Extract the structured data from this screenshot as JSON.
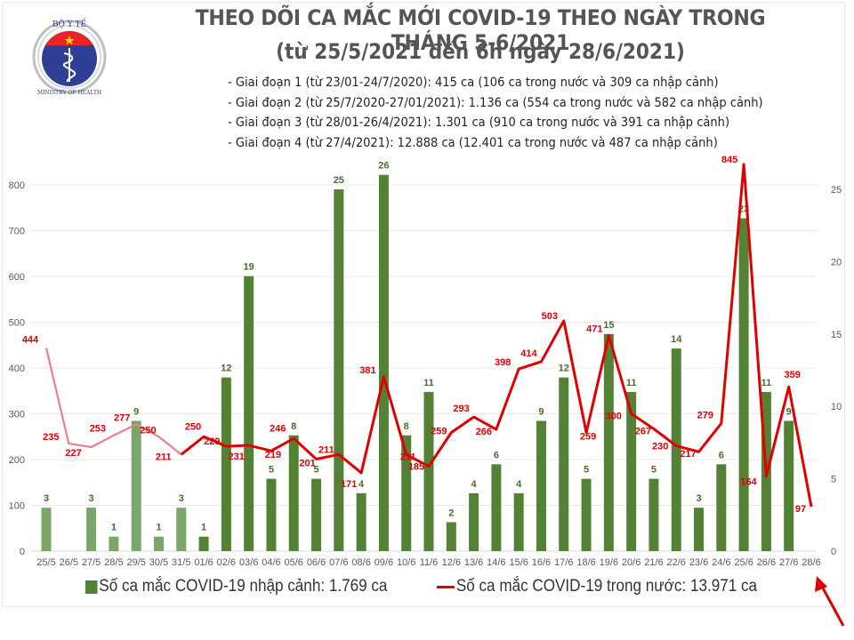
{
  "logo": {
    "top_text": "BỘ Y TẾ",
    "bottom_text": "MINISTRY OF HEALTH"
  },
  "title": "THEO DÕI CA MẮC MỚI COVID-19 THEO NGÀY TRONG THÁNG 5-6/2021",
  "subtitle": "(từ 25/5/2021 đến 6h ngày 28/6/2021)",
  "stages": [
    "- Giai đoạn 1 (từ 23/01-24/7/2020): 415 ca (106 ca trong nước và 309 ca nhập cảnh)",
    "- Giai đoạn 2 (từ 25/7/2020-27/01/2021): 1.136 ca (554 ca trong nước và 582 ca nhập cảnh)",
    "- Giai đoạn 3 (từ 28/01-26/4/2021): 1.301 ca (910 ca trong nước và 391 ca nhập cảnh)",
    "- Giai đoạn 4 (từ 27/4/2021): 12.888 ca (12.401 ca trong nước và 487 ca nhập cảnh)"
  ],
  "legend": {
    "bars": "Số ca mắc COVID-19 nhập cảnh: 1.769 ca",
    "line": "Số ca mắc COVID-19 trong nước: 13.971 ca"
  },
  "colors": {
    "bar": "#548235",
    "bar_faded": "#7aa66a",
    "line": "#e00000",
    "line_faded": "#ee7f8a",
    "grid": "#e8e8e8"
  },
  "chart_data": {
    "type": "bar+line",
    "title": "THEO DÕI CA MẮC MỚI COVID-19 THEO NGÀY TRONG THÁNG 5-6/2021",
    "categories": [
      "25/5",
      "26/5",
      "27/5",
      "28/5",
      "29/5",
      "30/5",
      "31/5",
      "01/6",
      "02/6",
      "03/6",
      "04/6",
      "05/6",
      "06/6",
      "07/6",
      "08/6",
      "09/6",
      "10/6",
      "11/6",
      "12/6",
      "13/6",
      "14/6",
      "15/6",
      "16/6",
      "17/6",
      "18/6",
      "19/6",
      "20/6",
      "21/6",
      "22/6",
      "23/6",
      "24/6",
      "25/6",
      "26/6",
      "27/6",
      "28/6"
    ],
    "series": [
      {
        "name": "Số ca mắc COVID-19 nhập cảnh: 1.769 ca",
        "type": "bar",
        "axis": "right",
        "values": [
          3,
          0,
          3,
          1,
          9,
          1,
          3,
          1,
          12,
          19,
          5,
          8,
          5,
          25,
          4,
          26,
          8,
          11,
          2,
          4,
          6,
          4,
          9,
          12,
          5,
          15,
          11,
          5,
          14,
          3,
          6,
          23,
          11,
          9,
          null
        ],
        "faded_until_index": 6
      },
      {
        "name": "Số ca mắc COVID-19 trong nước: 13.971 ca",
        "type": "line",
        "axis": "left",
        "values": [
          444,
          235,
          227,
          253,
          277,
          250,
          211,
          250,
          229,
          231,
          219,
          246,
          201,
          211,
          171,
          381,
          211,
          185,
          259,
          293,
          266,
          398,
          414,
          503,
          259,
          471,
          300,
          267,
          230,
          217,
          279,
          845,
          164,
          359,
          97
        ],
        "faded_until_index": 6
      }
    ],
    "y_left": {
      "ylim": [
        0,
        850
      ],
      "ticks": [
        0,
        100,
        200,
        300,
        400,
        500,
        600,
        700,
        800
      ]
    },
    "y_right": {
      "ylim": [
        0,
        26.5
      ],
      "ticks": [
        0,
        5,
        10,
        15,
        20,
        25
      ]
    },
    "grid": true,
    "legend_position": "bottom"
  }
}
